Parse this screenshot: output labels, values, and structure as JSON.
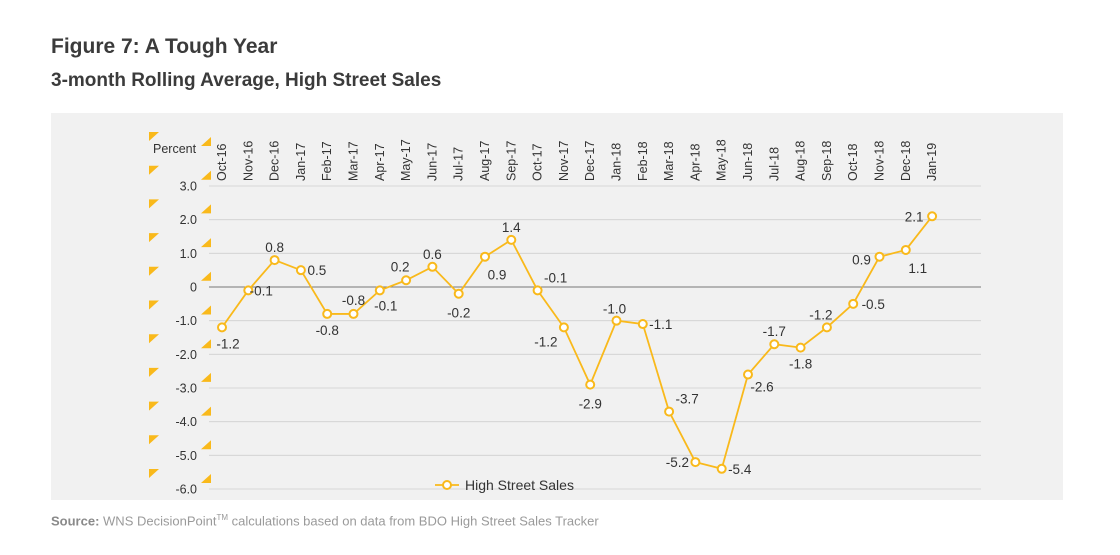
{
  "title": "Figure 7: A Tough Year",
  "subtitle": "3-month Rolling Average, High Street Sales",
  "source": {
    "label": "Source:",
    "text": "WNS DecisionPoint",
    "tm": "TM",
    "rest": " calculations based on data from BDO High Street Sales Tracker"
  },
  "chart_data": {
    "type": "line",
    "title": "Figure 7: A Tough Year",
    "subtitle": "3-month Rolling Average, High Street Sales",
    "ylabel": "Percent",
    "ylim": [
      -6.0,
      3.0
    ],
    "ytick_labels": [
      "3.0",
      "2.0",
      "1.0",
      "0",
      "-1.0",
      "-2.0",
      "-3.0",
      "-4.0",
      "-5.0",
      "-6.0"
    ],
    "ytick_values": [
      3,
      2,
      1,
      0,
      -1,
      -2,
      -3,
      -4,
      -5,
      -6
    ],
    "x_position": "top",
    "grid": true,
    "legend": "bottom-center",
    "categories": [
      "Oct-16",
      "Nov-16",
      "Dec-16",
      "Jan-17",
      "Feb-17",
      "Mar-17",
      "Apr-17",
      "May-17",
      "Jun-17",
      "Jul-17",
      "Aug-17",
      "Sep-17",
      "Oct-17",
      "Nov-17",
      "Dec-17",
      "Jan-18",
      "Feb-18",
      "Mar-18",
      "Apr-18",
      "May-18",
      "Jun-18",
      "Jul-18",
      "Aug-18",
      "Sep-18",
      "Oct-18",
      "Nov-18",
      "Dec-18",
      "Jan-19"
    ],
    "series": [
      {
        "name": "High Street Sales",
        "color": "#f9b91b",
        "values": [
          -1.2,
          -0.1,
          0.8,
          0.5,
          -0.8,
          -0.8,
          -0.1,
          0.2,
          0.6,
          -0.2,
          0.9,
          1.4,
          -0.1,
          -1.2,
          -2.9,
          -1.0,
          -1.1,
          -3.7,
          -5.2,
          -5.4,
          -2.6,
          -1.7,
          -1.8,
          -1.2,
          -0.5,
          0.9,
          1.1,
          2.1
        ],
        "data_labels": [
          "-1.2",
          "-0.1",
          "0.8",
          "0.5",
          "-0.8",
          "-0.8",
          "-0.1",
          "0.2",
          "0.6",
          "-0.2",
          "0.9",
          "1.4",
          "-0.1",
          "-1.2",
          "-2.9",
          "-1.0",
          "-1.1",
          "-3.7",
          "-5.2",
          "-5.4",
          "-2.6",
          "-1.7",
          "-1.8",
          "-1.2",
          "-0.5",
          "0.9",
          "1.1",
          "2.1"
        ]
      }
    ]
  }
}
